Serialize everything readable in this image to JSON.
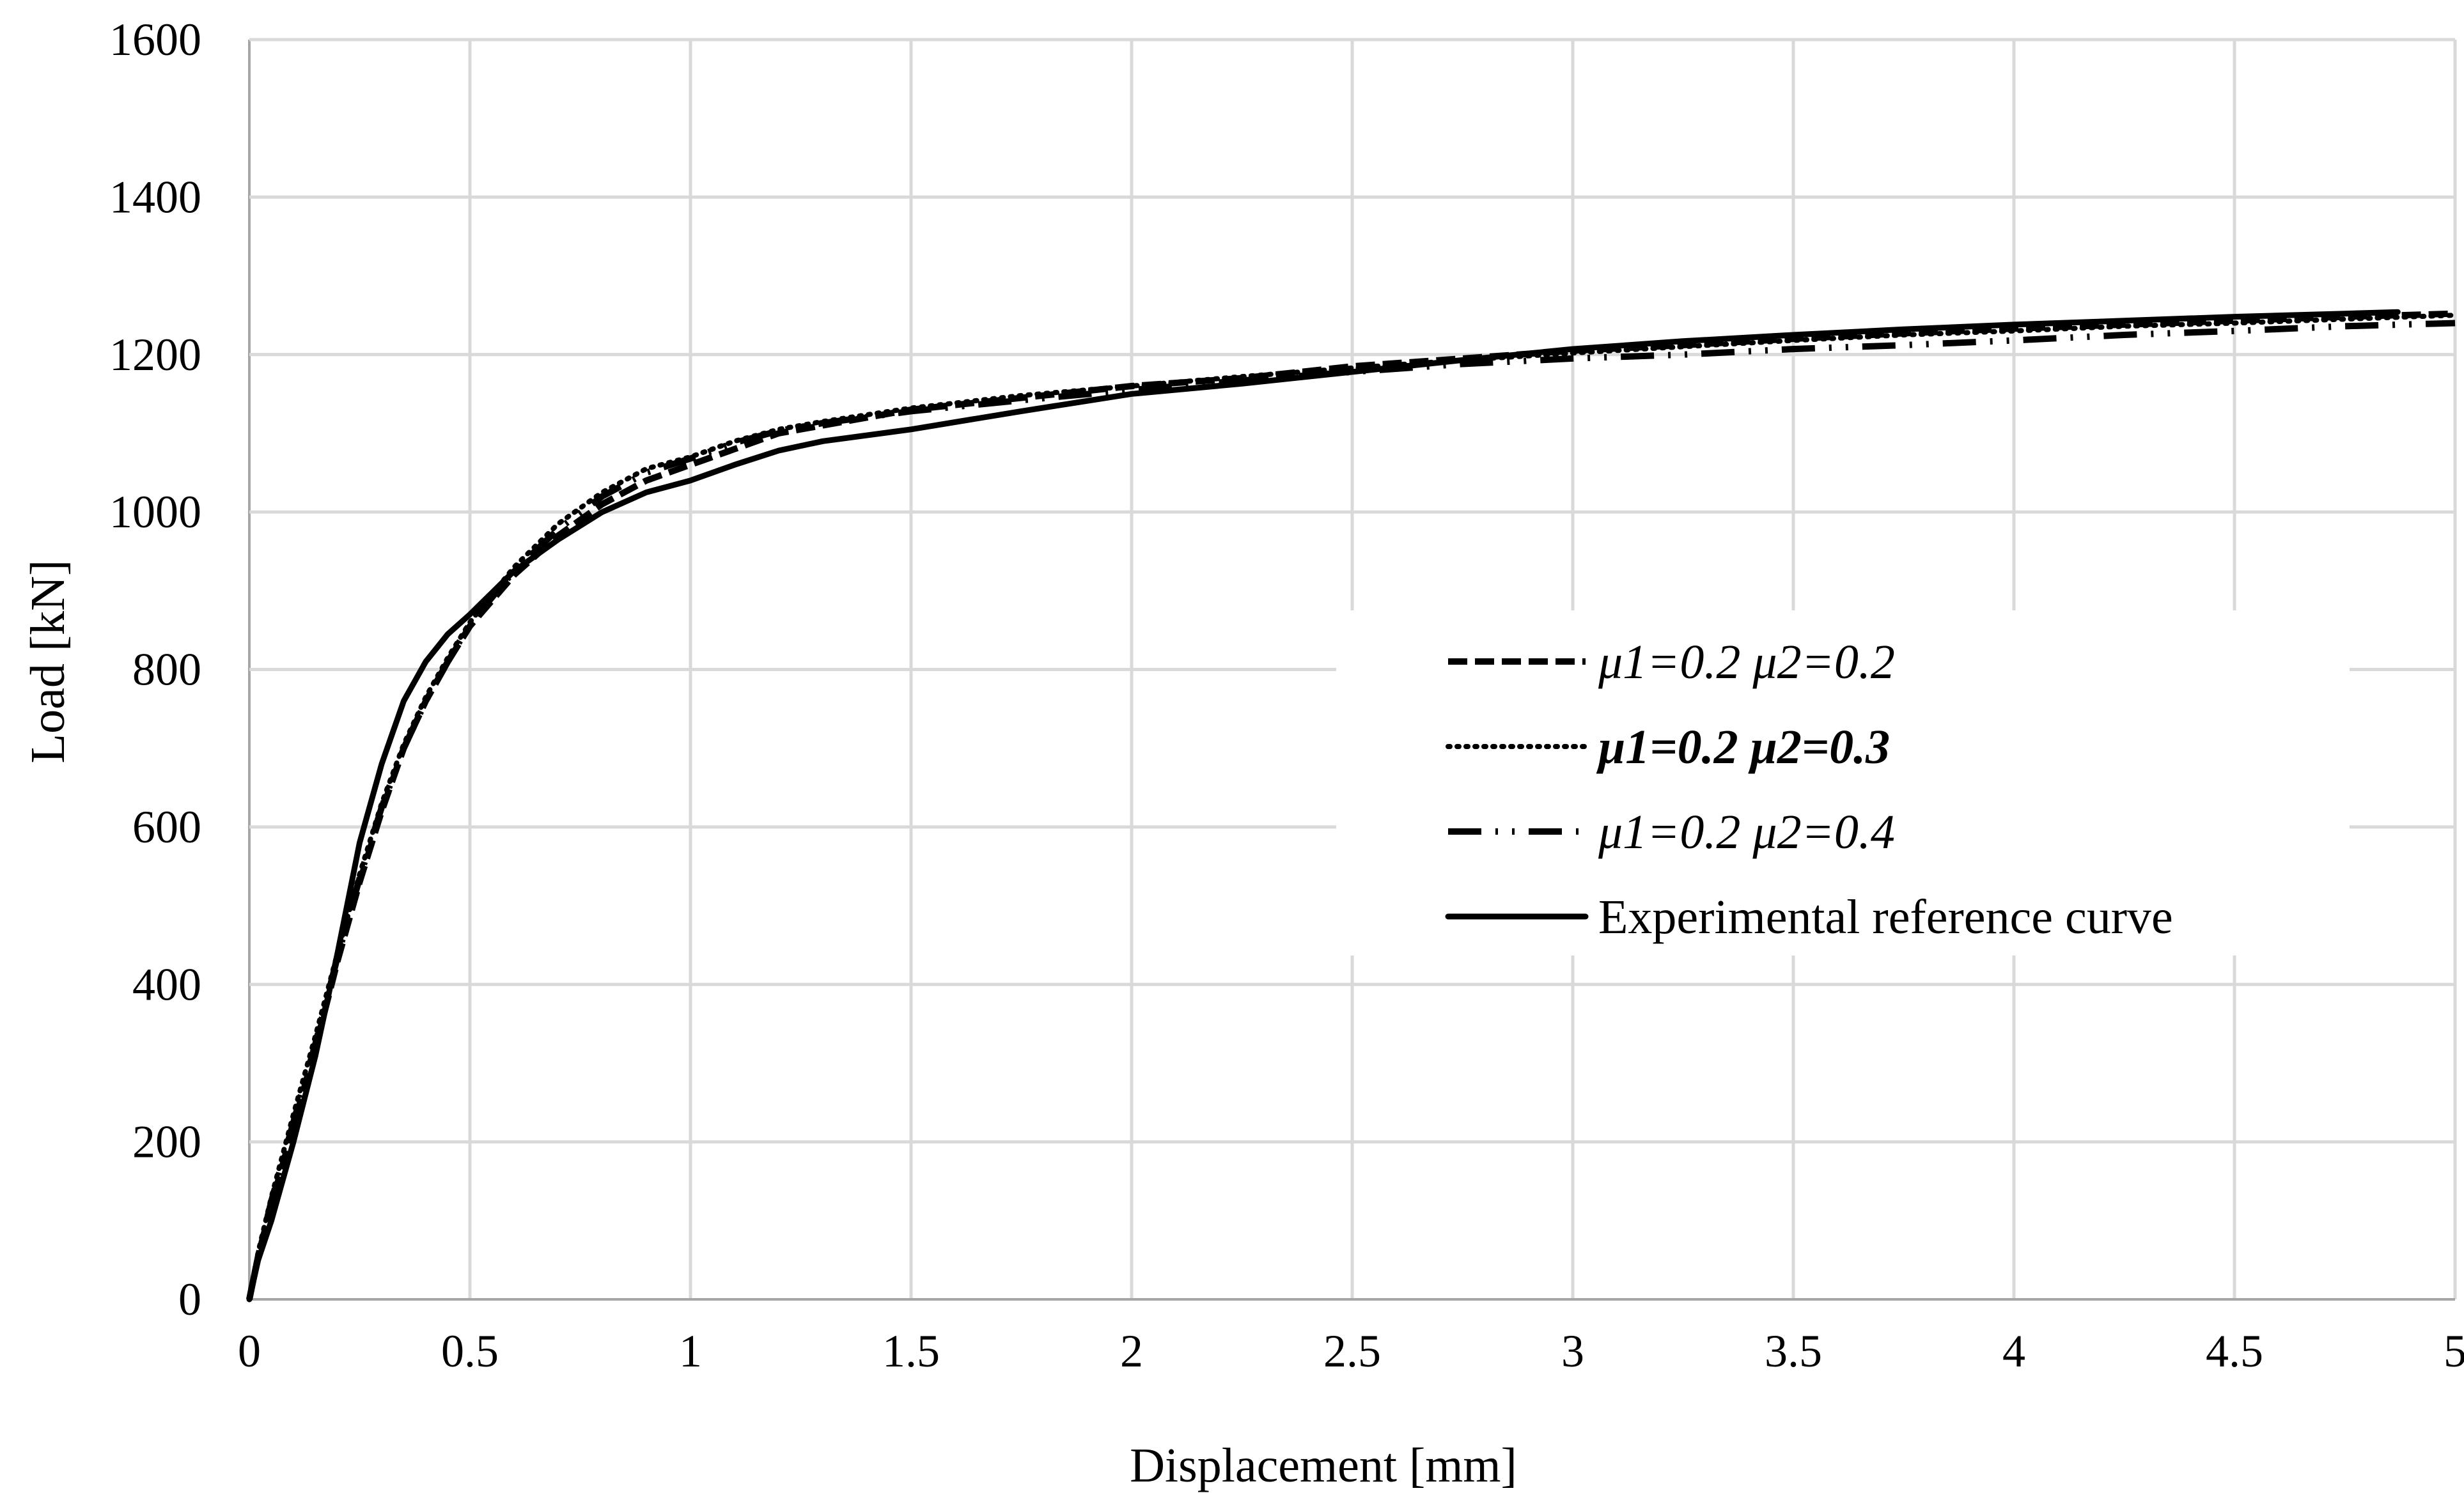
{
  "chart_data": {
    "type": "line",
    "title": "",
    "xlabel": "Displacement [mm]",
    "ylabel": "Load [kN]",
    "xlim": [
      0,
      5
    ],
    "ylim": [
      0,
      1600
    ],
    "x_ticks": [
      0,
      0.5,
      1,
      1.5,
      2,
      2.5,
      3,
      3.5,
      4,
      4.5,
      5
    ],
    "x_tick_labels": [
      "0",
      "0.5",
      "1",
      "1.5",
      "2",
      "2.5",
      "3",
      "3.5",
      "4",
      "4.5",
      "5"
    ],
    "y_ticks": [
      0,
      200,
      400,
      600,
      800,
      1000,
      1200,
      1400,
      1600
    ],
    "y_tick_labels": [
      "0",
      "200",
      "400",
      "600",
      "800",
      "1000",
      "1200",
      "1400",
      "1600"
    ],
    "grid": true,
    "legend_position": "center-right",
    "series": [
      {
        "name": "μ1=0.2 μ2=0.2",
        "style": "dashed",
        "legend_font": "italic",
        "x": [
          0,
          0.02,
          0.05,
          0.1,
          0.15,
          0.2,
          0.25,
          0.3,
          0.35,
          0.4,
          0.45,
          0.5,
          0.6,
          0.7,
          0.8,
          0.9,
          1.0,
          1.1,
          1.2,
          1.3,
          1.5,
          1.75,
          2.0,
          2.25,
          2.5,
          2.75,
          3.0,
          3.25,
          3.5,
          3.75,
          4.0,
          4.25,
          4.5,
          4.75,
          5.0
        ],
        "y": [
          0,
          55,
          120,
          220,
          320,
          430,
          530,
          620,
          700,
          760,
          810,
          855,
          920,
          970,
          1010,
          1040,
          1060,
          1080,
          1100,
          1110,
          1130,
          1145,
          1160,
          1170,
          1185,
          1195,
          1205,
          1212,
          1220,
          1227,
          1233,
          1238,
          1243,
          1248,
          1252
        ]
      },
      {
        "name": "μ1=0.2 μ2=0.3",
        "style": "dotted",
        "legend_font": "bold-italic",
        "x": [
          0,
          0.02,
          0.05,
          0.1,
          0.15,
          0.2,
          0.25,
          0.3,
          0.35,
          0.4,
          0.45,
          0.5,
          0.6,
          0.7,
          0.8,
          0.9,
          1.0,
          1.1,
          1.2,
          1.3,
          1.5,
          1.75,
          2.0,
          2.25,
          2.5,
          2.75,
          3.0,
          3.25,
          3.5,
          3.75,
          4.0,
          4.25,
          4.5,
          4.75,
          5.0
        ],
        "y": [
          0,
          60,
          130,
          235,
          335,
          440,
          540,
          630,
          705,
          765,
          815,
          860,
          930,
          985,
          1025,
          1055,
          1070,
          1090,
          1105,
          1115,
          1132,
          1148,
          1160,
          1172,
          1183,
          1193,
          1202,
          1210,
          1218,
          1225,
          1230,
          1236,
          1240,
          1245,
          1250
        ]
      },
      {
        "name": "μ1=0.2 μ2=0.4",
        "style": "dash-dot",
        "legend_font": "italic",
        "x": [
          0,
          0.02,
          0.05,
          0.1,
          0.15,
          0.2,
          0.25,
          0.3,
          0.35,
          0.4,
          0.45,
          0.5,
          0.6,
          0.7,
          0.8,
          0.9,
          1.0,
          1.1,
          1.2,
          1.3,
          1.5,
          1.75,
          2.0,
          2.25,
          2.5,
          2.75,
          3.0,
          3.25,
          3.5,
          3.75,
          4.0,
          4.25,
          4.5,
          4.75,
          5.0
        ],
        "y": [
          0,
          55,
          125,
          225,
          325,
          435,
          535,
          625,
          700,
          760,
          810,
          858,
          925,
          978,
          1020,
          1050,
          1068,
          1088,
          1103,
          1113,
          1128,
          1142,
          1155,
          1167,
          1178,
          1188,
          1195,
          1200,
          1207,
          1212,
          1218,
          1225,
          1230,
          1236,
          1240
        ]
      },
      {
        "name": "Experimental reference curve",
        "style": "solid",
        "legend_font": "normal",
        "x": [
          0,
          0.02,
          0.05,
          0.1,
          0.15,
          0.2,
          0.25,
          0.3,
          0.35,
          0.4,
          0.45,
          0.5,
          0.6,
          0.7,
          0.8,
          0.9,
          1.0,
          1.1,
          1.2,
          1.3,
          1.5,
          1.75,
          2.0,
          2.25,
          2.5,
          2.75,
          3.0,
          3.25,
          3.5,
          3.75,
          4.0,
          4.25,
          4.5,
          4.75,
          4.87
        ],
        "y": [
          0,
          50,
          100,
          200,
          310,
          440,
          580,
          680,
          760,
          810,
          845,
          870,
          925,
          965,
          1000,
          1025,
          1040,
          1060,
          1078,
          1090,
          1105,
          1128,
          1150,
          1163,
          1178,
          1193,
          1207,
          1217,
          1225,
          1232,
          1238,
          1243,
          1248,
          1252,
          1254
        ]
      }
    ]
  }
}
